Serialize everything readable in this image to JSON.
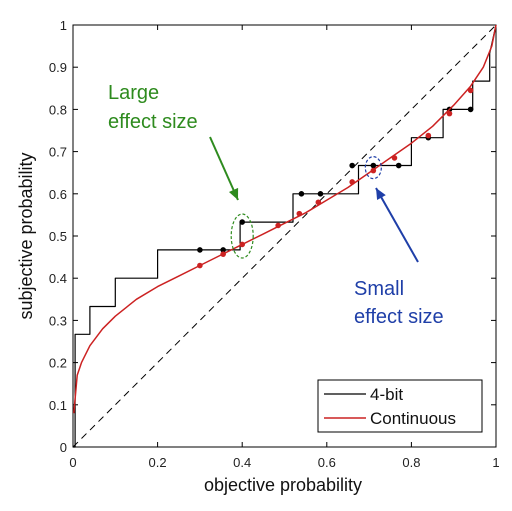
{
  "chart_data": {
    "type": "line",
    "xlabel": "objective probability",
    "ylabel": "subjective probability",
    "xlim": [
      0,
      1
    ],
    "ylim": [
      0,
      1
    ],
    "xticks": [
      "0",
      "0.2",
      "0.4",
      "0.6",
      "0.8",
      "1"
    ],
    "yticks": [
      "0",
      "0.1",
      "0.2",
      "0.3",
      "0.4",
      "0.5",
      "0.6",
      "0.7",
      "0.8",
      "0.9",
      "1"
    ],
    "grid": false,
    "legend_position": "bottom-right",
    "colors": {
      "four_bit": "#000000",
      "continuous": "#cc2222",
      "large": "#2e8b1e",
      "small": "#1f3fa8"
    },
    "series": [
      {
        "name": "4-bit",
        "style": "step",
        "x": [
          0,
          0.005,
          0.005,
          0.04,
          0.04,
          0.1,
          0.1,
          0.2,
          0.2,
          0.3,
          0.3,
          0.355,
          0.355,
          0.395,
          0.395,
          0.485,
          0.485,
          0.52,
          0.52,
          0.585,
          0.585,
          0.635,
          0.635,
          0.675,
          0.675,
          0.77,
          0.77,
          0.8,
          0.8,
          0.875,
          0.875,
          0.945,
          0.945,
          0.985,
          0.985,
          1.0
        ],
        "y": [
          0,
          0,
          0.267,
          0.267,
          0.333,
          0.333,
          0.4,
          0.4,
          0.467,
          0.467,
          0.467,
          0.467,
          0.467,
          0.467,
          0.533,
          0.533,
          0.533,
          0.533,
          0.6,
          0.6,
          0.6,
          0.6,
          0.6,
          0.6,
          0.667,
          0.667,
          0.667,
          0.667,
          0.733,
          0.733,
          0.8,
          0.8,
          0.867,
          0.867,
          0.933,
          1.0
        ],
        "markers_x": [
          0.3,
          0.355,
          0.4,
          0.54,
          0.585,
          0.66,
          0.71,
          0.77,
          0.84,
          0.89,
          0.94
        ],
        "markers_y": [
          0.467,
          0.467,
          0.533,
          0.6,
          0.6,
          0.667,
          0.667,
          0.667,
          0.733,
          0.8,
          0.8
        ]
      },
      {
        "name": "Continuous",
        "style": "curve",
        "x": [
          0.002,
          0.01,
          0.02,
          0.04,
          0.07,
          0.1,
          0.15,
          0.2,
          0.25,
          0.3,
          0.35,
          0.4,
          0.45,
          0.5,
          0.55,
          0.6,
          0.65,
          0.7,
          0.75,
          0.8,
          0.85,
          0.9,
          0.94,
          0.97,
          0.99,
          1.0
        ],
        "y": [
          0.08,
          0.17,
          0.2,
          0.24,
          0.28,
          0.31,
          0.35,
          0.38,
          0.405,
          0.43,
          0.455,
          0.48,
          0.505,
          0.53,
          0.555,
          0.585,
          0.615,
          0.65,
          0.685,
          0.72,
          0.76,
          0.81,
          0.855,
          0.9,
          0.95,
          1.0
        ],
        "markers_x": [
          0.3,
          0.355,
          0.4,
          0.485,
          0.535,
          0.58,
          0.66,
          0.71,
          0.76,
          0.84,
          0.89,
          0.94
        ],
        "markers_y": [
          0.43,
          0.457,
          0.48,
          0.525,
          0.553,
          0.58,
          0.628,
          0.655,
          0.685,
          0.738,
          0.79,
          0.845
        ]
      }
    ],
    "reference_line": {
      "x": [
        0,
        1
      ],
      "y": [
        0,
        1
      ],
      "style": "dashed"
    },
    "annotations": [
      {
        "text_lines": [
          "Large",
          "effect size"
        ],
        "target": [
          0.4,
          0.5
        ]
      },
      {
        "text_lines": [
          "Small",
          "effect size"
        ],
        "target": [
          0.71,
          0.662
        ]
      }
    ]
  },
  "legend": {
    "items": [
      "4-bit",
      "Continuous"
    ]
  }
}
